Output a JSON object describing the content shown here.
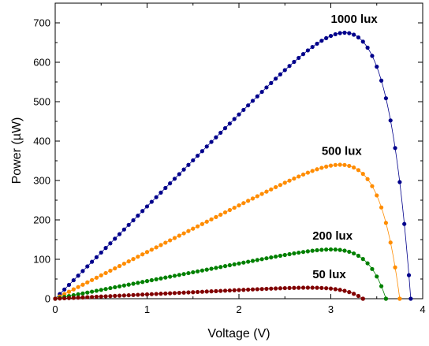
{
  "chart_data": {
    "type": "scatter",
    "title": "",
    "xlabel": "Voltage (V)",
    "ylabel": "Power (µW)",
    "xlim": [
      0,
      4
    ],
    "ylim": [
      0,
      750
    ],
    "x_ticks": [
      "0",
      "1",
      "2",
      "3",
      "4"
    ],
    "y_ticks": [
      "0",
      "100",
      "200",
      "300",
      "400",
      "500",
      "600",
      "700"
    ],
    "grid": false,
    "legend": "inline labels near each curve",
    "series": [
      {
        "name": "1000 lux",
        "color": "#00008b",
        "peak_voltage": 3.15,
        "peak_power": 675,
        "open_circuit_voltage": 3.87,
        "label_position": {
          "x": 3.0,
          "y": 700
        }
      },
      {
        "name": "500 lux",
        "color": "#ff8c00",
        "peak_voltage": 3.1,
        "peak_power": 340,
        "open_circuit_voltage": 3.75,
        "label_position": {
          "x": 2.9,
          "y": 365
        }
      },
      {
        "name": "200 lux",
        "color": "#008000",
        "peak_voltage": 3.0,
        "peak_power": 125,
        "open_circuit_voltage": 3.6,
        "label_position": {
          "x": 2.8,
          "y": 150
        }
      },
      {
        "name": "50 lux",
        "color": "#800000",
        "peak_voltage": 2.75,
        "peak_power": 28,
        "open_circuit_voltage": 3.35,
        "label_position": {
          "x": 2.8,
          "y": 52
        }
      }
    ]
  }
}
